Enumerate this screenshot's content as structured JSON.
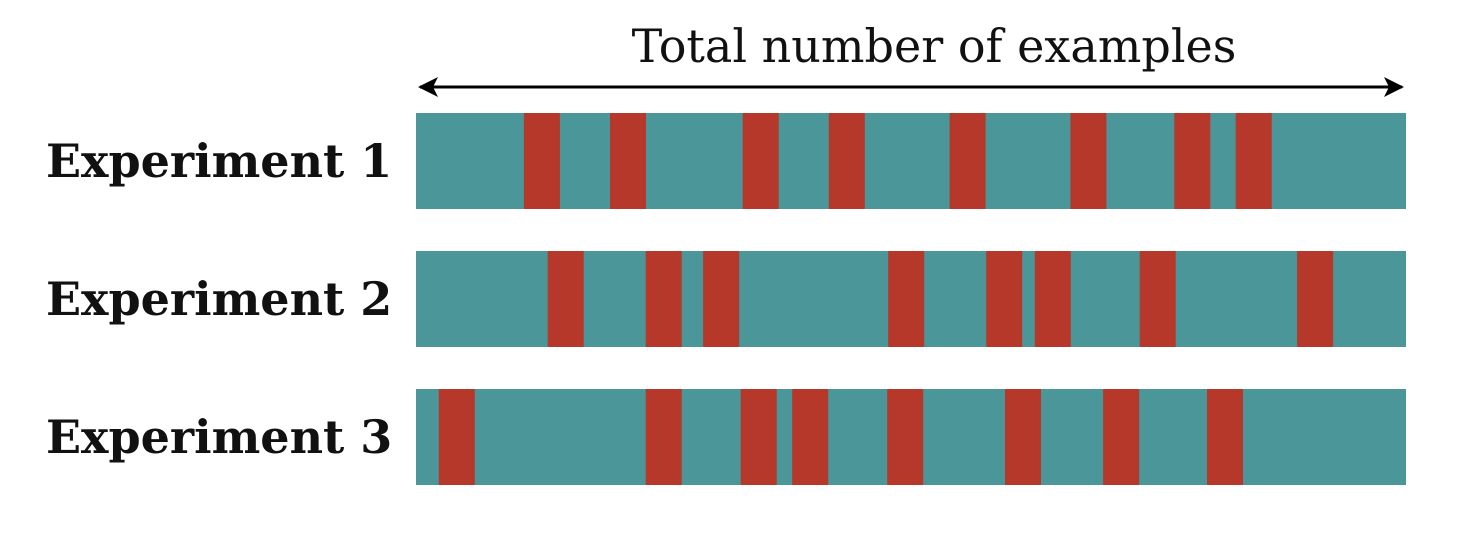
{
  "axis": {
    "title": "Total number of examples"
  },
  "colors": {
    "base": "#4A9698",
    "highlight": "#B5382A",
    "arrow": "#000000",
    "text": "#111111"
  },
  "experiments": [
    {
      "label": "Experiment 1",
      "highlights": [
        0.109,
        0.196,
        0.33,
        0.417,
        0.539,
        0.661,
        0.766,
        0.828
      ]
    },
    {
      "label": "Experiment 2",
      "highlights": [
        0.133,
        0.232,
        0.29,
        0.477,
        0.576,
        0.625,
        0.731,
        0.89
      ]
    },
    {
      "label": "Experiment 3",
      "highlights": [
        0.023,
        0.232,
        0.328,
        0.38,
        0.476,
        0.595,
        0.694,
        0.799
      ]
    }
  ]
}
